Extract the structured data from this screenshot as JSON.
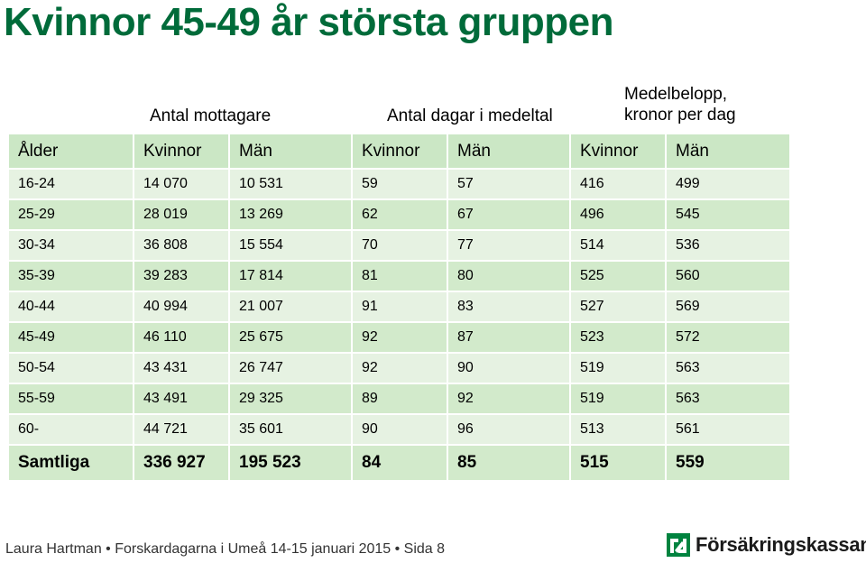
{
  "title": "Kvinnor 45-49 år största gruppen",
  "groups": {
    "mottagare": "Antal mottagare",
    "dagar": "Antal dagar i medeltal",
    "belopp_line1": "Medelbelopp,",
    "belopp_line2": "kronor per dag"
  },
  "table": {
    "headers": [
      "Ålder",
      "Kvinnor",
      "Män",
      "Kvinnor",
      "Män",
      "Kvinnor",
      "Män"
    ],
    "rows": [
      [
        "16-24",
        "14 070",
        "10 531",
        "59",
        "57",
        "416",
        "499"
      ],
      [
        "25-29",
        "28 019",
        "13 269",
        "62",
        "67",
        "496",
        "545"
      ],
      [
        "30-34",
        "36 808",
        "15 554",
        "70",
        "77",
        "514",
        "536"
      ],
      [
        "35-39",
        "39 283",
        "17 814",
        "81",
        "80",
        "525",
        "560"
      ],
      [
        "40-44",
        "40 994",
        "21 007",
        "91",
        "83",
        "527",
        "569"
      ],
      [
        "45-49",
        "46 110",
        "25 675",
        "92",
        "87",
        "523",
        "572"
      ],
      [
        "50-54",
        "43 431",
        "26 747",
        "92",
        "90",
        "519",
        "563"
      ],
      [
        "55-59",
        "43 491",
        "29 325",
        "89",
        "92",
        "519",
        "563"
      ],
      [
        "60-",
        "44 721",
        "35 601",
        "90",
        "96",
        "513",
        "561"
      ]
    ],
    "total": [
      "Samtliga",
      "336 927",
      "195 523",
      "84",
      "85",
      "515",
      "559"
    ]
  },
  "footer": "Laura Hartman • Forskardagarna i Umeå 14-15 januari 2015 • Sida 8",
  "logo_text": "Försäkringskassan",
  "colors": {
    "title": "#006b3a",
    "header_bg": "#cbe7c5",
    "row_light": "#e6f2e2",
    "row_dark": "#d2eacb",
    "logo_green": "#00833f"
  }
}
